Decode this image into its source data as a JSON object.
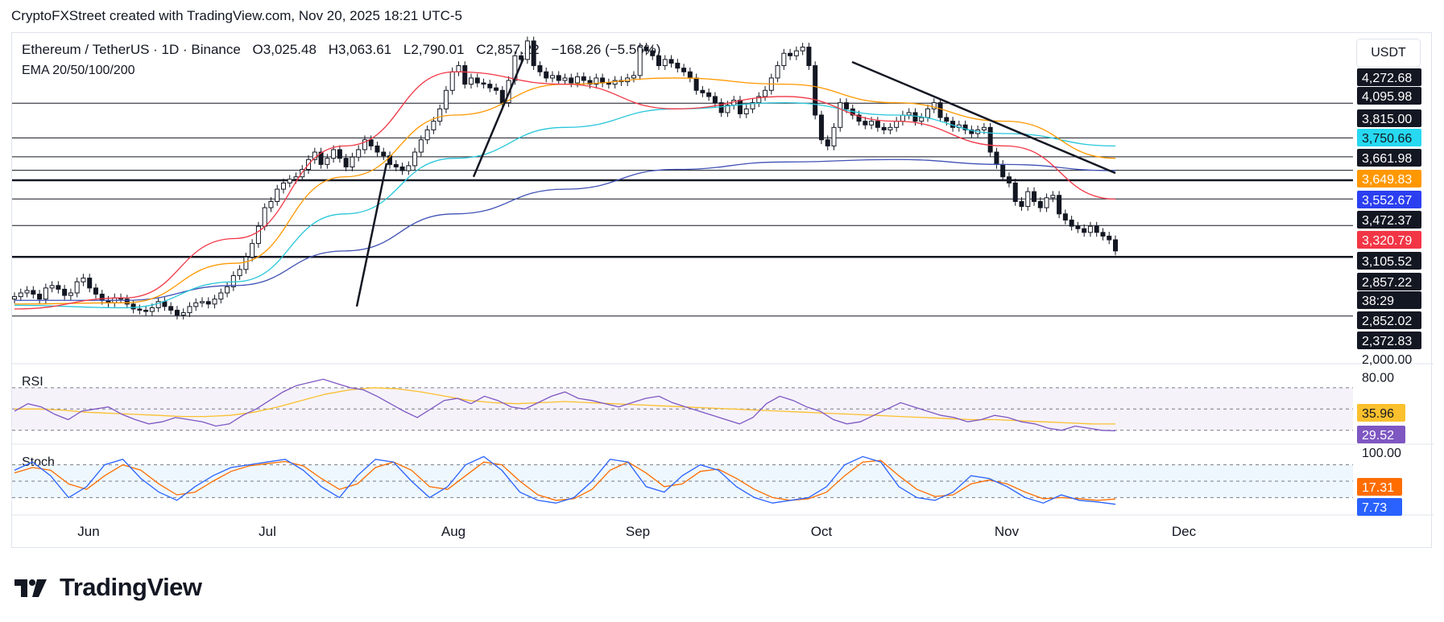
{
  "header": {
    "credit": "CryptoFXStreet created with TradingView.com, Nov 20, 2025 18:21 UTC-5"
  },
  "symbol": {
    "pair": "Ethereum / TetherUS · 1D · Binance",
    "open": "O3,025.48",
    "high": "H3,063.61",
    "low": "L2,790.01",
    "close": "C2,857.22",
    "change": "−168.26 (−5.56%)"
  },
  "indicator_label": "EMA 20/50/100/200",
  "currency_button": "USDT",
  "rsi_label": "RSI",
  "stoch_label": "Stoch",
  "branding": "TradingView",
  "colors": {
    "up": "#131722",
    "down": "#131722",
    "ema20": "#f23645",
    "ema50": "#ff9800",
    "ema100": "#26c6da",
    "ema200": "#3f51b5",
    "rsi": "#7e57c2",
    "rsi_ma": "#fbc02d",
    "stoch_k": "#2962ff",
    "stoch_d": "#ff6d00"
  },
  "chart_data": [
    {
      "type": "candlestick",
      "name": "Ethereum / TetherUS 1D",
      "x_tick_labels": [
        "Jun",
        "Jul",
        "Aug",
        "Sep",
        "Oct",
        "Nov",
        "Dec"
      ],
      "y_axis_labels": [
        "4,272.68",
        "4,095.98",
        "3,815.00",
        "3,750.66",
        "3,661.98",
        "3,649.83",
        "3,552.67",
        "3,472.37",
        "3,320.79",
        "3,105.52",
        "2,857.22",
        "38:29",
        "2,852.02",
        "2,372.83",
        "2,000.00"
      ],
      "price_badges": [
        {
          "label": "4,272.68",
          "bg": "#131722",
          "fg": "#ffffff"
        },
        {
          "label": "4,095.98",
          "bg": "#131722",
          "fg": "#ffffff"
        },
        {
          "label": "3,815.00",
          "bg": "#131722",
          "fg": "#ffffff"
        },
        {
          "label": "3,750.66",
          "bg": "#26d9f0",
          "fg": "#131722"
        },
        {
          "label": "3,661.98",
          "bg": "#131722",
          "fg": "#ffffff"
        },
        {
          "label": "3,649.83",
          "bg": "#ff9800",
          "fg": "#ffffff"
        },
        {
          "label": "3,552.67",
          "bg": "#2b3ff0",
          "fg": "#ffffff"
        },
        {
          "label": "3,472.37",
          "bg": "#131722",
          "fg": "#ffffff"
        },
        {
          "label": "3,320.79",
          "bg": "#f23645",
          "fg": "#ffffff"
        },
        {
          "label": "3,105.52",
          "bg": "#131722",
          "fg": "#ffffff"
        },
        {
          "label": "2,857.22",
          "bg": "#131722",
          "fg": "#ffffff"
        },
        {
          "label": "38:29",
          "bg": "#131722",
          "fg": "#ffffff"
        },
        {
          "label": "2,852.02",
          "bg": "#131722",
          "fg": "#ffffff"
        },
        {
          "label": "2,372.83",
          "bg": "#131722",
          "fg": "#ffffff"
        },
        {
          "label": "2,000.00",
          "bg": "none",
          "fg": "#131722"
        }
      ],
      "horizontal_levels": [
        4095.98,
        3815.0,
        3661.98,
        3552.67,
        3472.37,
        3320.79,
        3105.52,
        2852.02,
        2372.83
      ],
      "bold_levels": [
        3472.37,
        2852.02
      ],
      "ylim": [
        2000,
        4280
      ],
      "ohlc_sample_close": [
        2530,
        2560,
        2580,
        2550,
        2510,
        2600,
        2620,
        2590,
        2540,
        2560,
        2650,
        2680,
        2600,
        2550,
        2500,
        2480,
        2520,
        2510,
        2470,
        2430,
        2420,
        2410,
        2440,
        2490,
        2450,
        2420,
        2380,
        2400,
        2450,
        2480,
        2490,
        2470,
        2510,
        2560,
        2610,
        2700,
        2750,
        2850,
        2960,
        3100,
        3250,
        3300,
        3400,
        3450,
        3480,
        3500,
        3560,
        3640,
        3700,
        3600,
        3650,
        3720,
        3650,
        3580,
        3660,
        3720,
        3800,
        3750,
        3700,
        3670,
        3600,
        3580,
        3550,
        3590,
        3700,
        3800,
        3880,
        3950,
        4050,
        4200,
        4350,
        4400,
        4250,
        4300,
        4260,
        4250,
        4220,
        4200,
        4100,
        4280,
        4480,
        4450,
        4600,
        4400,
        4350,
        4300,
        4320,
        4280,
        4300,
        4260,
        4310,
        4280,
        4250,
        4300,
        4260,
        4250,
        4280,
        4270,
        4300,
        4320,
        4550,
        4520,
        4480,
        4400,
        4450,
        4420,
        4380,
        4350,
        4300,
        4200,
        4180,
        4150,
        4100,
        4020,
        4080,
        4120,
        4010,
        4050,
        4100,
        4150,
        4200,
        4300,
        4400,
        4500,
        4480,
        4520,
        4550,
        4400,
        4000,
        3800,
        3750,
        3900,
        4100,
        4050,
        4000,
        3950,
        3920,
        3950,
        3900,
        3880,
        3900,
        3950,
        4000,
        4020,
        3950,
        3980,
        4050,
        4100,
        3980,
        3950,
        3900,
        3920,
        3880,
        3850,
        3880,
        3900,
        3700,
        3600,
        3500,
        3450,
        3300,
        3260,
        3380,
        3300,
        3250,
        3330,
        3350,
        3200,
        3150,
        3100,
        3080,
        3050,
        3100,
        3050,
        3020,
        2990,
        2900
      ],
      "ema20": [
        2430,
        2520,
        3000,
        3750,
        4350,
        4250,
        4050,
        4150,
        3950,
        3750,
        3320
      ],
      "ema50": [
        2470,
        2480,
        2800,
        3500,
        4000,
        4250,
        4300,
        4250,
        4100,
        3950,
        3650
      ],
      "ema100": [
        2460,
        2440,
        2650,
        3200,
        3650,
        3900,
        4050,
        4100,
        4000,
        3850,
        3750
      ],
      "ema200": [
        2500,
        2500,
        2620,
        2900,
        3200,
        3400,
        3560,
        3620,
        3640,
        3600,
        3550
      ],
      "trendlines": [
        {
          "from": [
            2450,
            "Jul"
          ],
          "to": [
            3610,
            "mid-Jul"
          ]
        },
        {
          "from": [
            3500,
            "early Aug"
          ],
          "to": [
            4460,
            "mid-Aug"
          ]
        },
        {
          "from": [
            4430,
            "early Oct"
          ],
          "to": [
            3530,
            "Nov 20"
          ]
        }
      ]
    },
    {
      "type": "line",
      "name": "RSI",
      "ylabel": "RSI",
      "y_axis_labels": [
        "80.00",
        "35.96",
        "29.52"
      ],
      "bands": [
        70,
        50,
        30
      ],
      "rsi_values": [
        48,
        55,
        52,
        45,
        40,
        48,
        50,
        52,
        45,
        40,
        36,
        38,
        42,
        40,
        38,
        34,
        36,
        44,
        50,
        58,
        66,
        72,
        75,
        78,
        74,
        70,
        68,
        62,
        55,
        48,
        42,
        50,
        58,
        60,
        55,
        62,
        58,
        52,
        50,
        56,
        62,
        66,
        60,
        58,
        55,
        52,
        56,
        60,
        62,
        56,
        52,
        48,
        44,
        40,
        36,
        42,
        55,
        62,
        58,
        52,
        48,
        40,
        36,
        38,
        44,
        50,
        56,
        52,
        48,
        44,
        42,
        38,
        40,
        44,
        42,
        38,
        36,
        32,
        30,
        34,
        32,
        30,
        29.5
      ],
      "rsi_ma_values": [
        50,
        50,
        49,
        47,
        46,
        45,
        44,
        43,
        43,
        44,
        47,
        52,
        58,
        64,
        68,
        70,
        69,
        66,
        62,
        58,
        56,
        55,
        56,
        57,
        56,
        55,
        54,
        53,
        52,
        51,
        50,
        49,
        48,
        47,
        46,
        45,
        44,
        43,
        42,
        41,
        40,
        40,
        39,
        38,
        37,
        36,
        35.96
      ]
    },
    {
      "type": "line",
      "name": "Stoch",
      "ylabel": "Stoch",
      "y_axis_labels": [
        "100.00",
        "17.31",
        "7.73"
      ],
      "bands": [
        80,
        50,
        20
      ],
      "k_values": [
        70,
        85,
        60,
        20,
        40,
        80,
        90,
        55,
        30,
        15,
        40,
        60,
        75,
        80,
        85,
        90,
        70,
        40,
        20,
        60,
        90,
        85,
        50,
        20,
        40,
        80,
        95,
        70,
        30,
        15,
        10,
        20,
        50,
        90,
        85,
        40,
        30,
        60,
        80,
        70,
        40,
        20,
        10,
        15,
        20,
        40,
        80,
        95,
        85,
        40,
        20,
        15,
        30,
        60,
        55,
        40,
        20,
        10,
        25,
        15,
        12,
        7.73
      ],
      "d_values": [
        65,
        75,
        70,
        45,
        35,
        60,
        80,
        70,
        45,
        25,
        30,
        50,
        68,
        78,
        82,
        86,
        78,
        55,
        35,
        45,
        75,
        85,
        70,
        40,
        35,
        60,
        85,
        80,
        50,
        25,
        15,
        18,
        35,
        70,
        85,
        65,
        40,
        45,
        68,
        72,
        55,
        35,
        20,
        15,
        18,
        30,
        60,
        85,
        88,
        60,
        35,
        22,
        25,
        45,
        52,
        45,
        30,
        18,
        20,
        18,
        15,
        17.31
      ]
    }
  ]
}
